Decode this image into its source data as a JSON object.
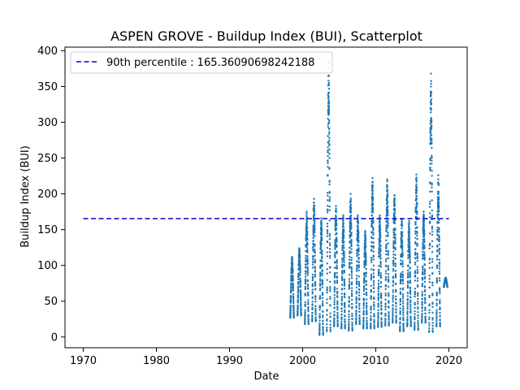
{
  "chart_data": {
    "type": "scatter",
    "title": "ASPEN GROVE - Buildup Index (BUI), Scatterplot",
    "xlabel": "Date",
    "ylabel": "Buildup Index (BUI)",
    "xlim": [
      1967.5,
      2022.5
    ],
    "ylim": [
      -15,
      405
    ],
    "xticks": [
      1970,
      1980,
      1990,
      2000,
      2010,
      2020
    ],
    "xtick_labels": [
      "1970",
      "1980",
      "1990",
      "2000",
      "2010",
      "2020"
    ],
    "yticks": [
      0,
      50,
      100,
      150,
      200,
      250,
      300,
      350,
      400
    ],
    "ytick_labels": [
      "0",
      "50",
      "100",
      "150",
      "200",
      "250",
      "300",
      "350",
      "400"
    ],
    "grid": false,
    "legend_position": "upper-left",
    "colors": {
      "points": "#1f77b4",
      "reference_line": "#0000cc"
    },
    "reference_line": {
      "label": "90th percentile : 165.36090698242188",
      "y": 165.36090698242188,
      "x_range": [
        1970,
        2020
      ]
    },
    "season_ranges": [
      {
        "year": 1998,
        "min": 27,
        "max": 112
      },
      {
        "year": 1999,
        "min": 30,
        "max": 124
      },
      {
        "year": 2000,
        "min": 18,
        "max": 175
      },
      {
        "year": 2001,
        "min": 22,
        "max": 193
      },
      {
        "year": 2002,
        "min": 3,
        "max": 166
      },
      {
        "year": 2003,
        "min": 8,
        "max": 385
      },
      {
        "year": 2004,
        "min": 15,
        "max": 183
      },
      {
        "year": 2005,
        "min": 12,
        "max": 170
      },
      {
        "year": 2006,
        "min": 9,
        "max": 200
      },
      {
        "year": 2007,
        "min": 18,
        "max": 170
      },
      {
        "year": 2008,
        "min": 12,
        "max": 148
      },
      {
        "year": 2009,
        "min": 12,
        "max": 222
      },
      {
        "year": 2010,
        "min": 14,
        "max": 170
      },
      {
        "year": 2011,
        "min": 16,
        "max": 220
      },
      {
        "year": 2012,
        "min": 20,
        "max": 198
      },
      {
        "year": 2013,
        "min": 8,
        "max": 165
      },
      {
        "year": 2014,
        "min": 15,
        "max": 162
      },
      {
        "year": 2015,
        "min": 10,
        "max": 227
      },
      {
        "year": 2016,
        "min": 20,
        "max": 175
      },
      {
        "year": 2017,
        "min": 7,
        "max": 368
      },
      {
        "year": 2018,
        "min": 15,
        "max": 226
      },
      {
        "year": 2019,
        "min": 70,
        "max": 83
      }
    ]
  }
}
